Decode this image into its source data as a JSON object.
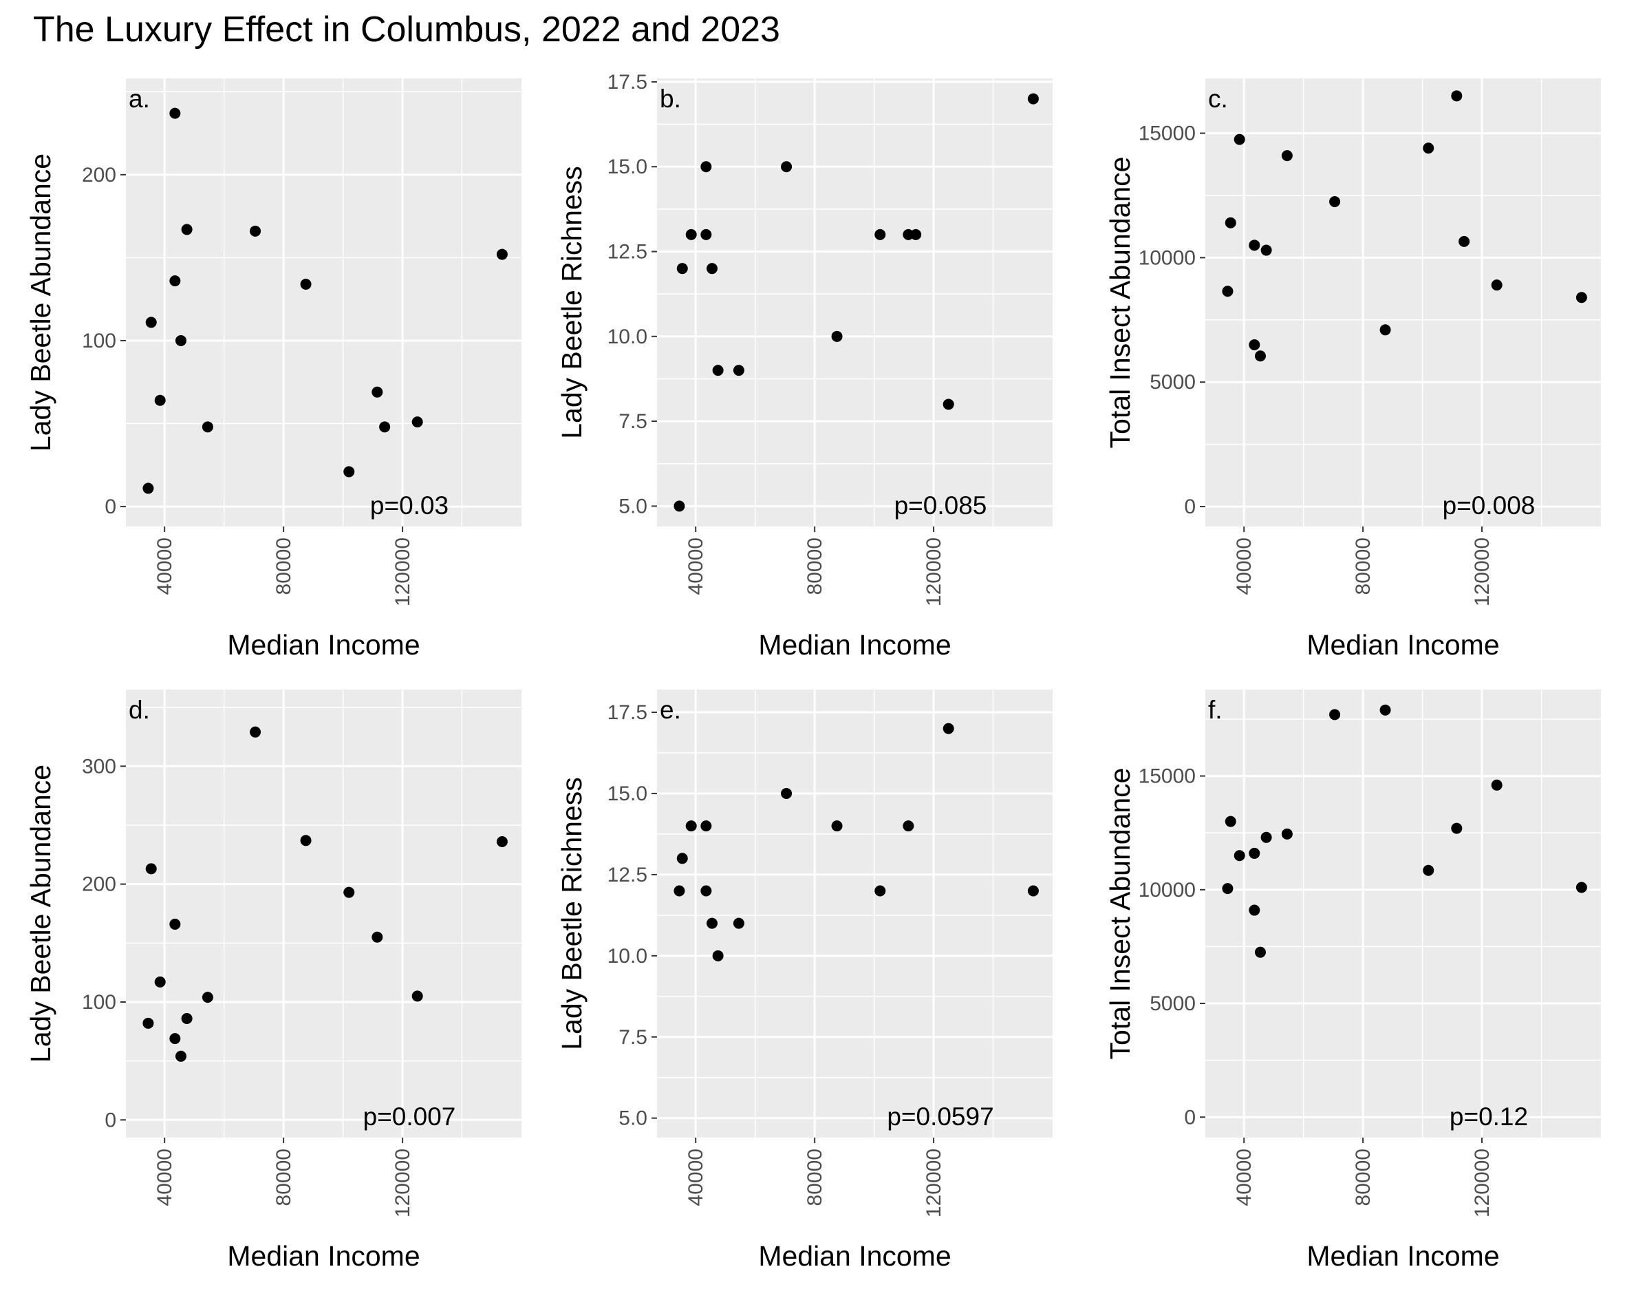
{
  "figure": {
    "title": "The Luxury Effect in Columbus, 2022 and 2023"
  },
  "chart_data": [
    {
      "type": "scatter",
      "panel_label": "a.",
      "annotation": "p=0.03",
      "xlabel": "Median Income",
      "ylabel": "Lady Beetle Abundance",
      "xlim": [
        27000,
        160000
      ],
      "ylim": [
        -12,
        258
      ],
      "x_ticks": [
        40000,
        80000,
        120000
      ],
      "y_ticks": [
        0,
        100,
        200
      ],
      "y_tick_labels": [
        "0",
        "100",
        "200"
      ],
      "grid": true,
      "points": [
        {
          "x": 34500,
          "y": 11
        },
        {
          "x": 35500,
          "y": 111
        },
        {
          "x": 38500,
          "y": 64
        },
        {
          "x": 43500,
          "y": 237
        },
        {
          "x": 43500,
          "y": 136
        },
        {
          "x": 45500,
          "y": 100
        },
        {
          "x": 47500,
          "y": 167
        },
        {
          "x": 54500,
          "y": 48
        },
        {
          "x": 70500,
          "y": 166
        },
        {
          "x": 87500,
          "y": 134
        },
        {
          "x": 102000,
          "y": 21
        },
        {
          "x": 111500,
          "y": 69
        },
        {
          "x": 114000,
          "y": 48
        },
        {
          "x": 125000,
          "y": 51
        },
        {
          "x": 153500,
          "y": 152
        }
      ]
    },
    {
      "type": "scatter",
      "panel_label": "b.",
      "annotation": "p=0.085",
      "xlabel": "Median Income",
      "ylabel": "Lady Beetle Richness",
      "xlim": [
        27000,
        160000
      ],
      "ylim": [
        4.4,
        17.6
      ],
      "x_ticks": [
        40000,
        80000,
        120000
      ],
      "y_ticks": [
        5,
        7.5,
        10,
        12.5,
        15,
        17.5
      ],
      "y_tick_labels": [
        "5.0",
        "7.5",
        "10.0",
        "12.5",
        "15.0",
        "17.5"
      ],
      "grid": true,
      "points": [
        {
          "x": 34500,
          "y": 5
        },
        {
          "x": 35500,
          "y": 12
        },
        {
          "x": 38500,
          "y": 13
        },
        {
          "x": 43500,
          "y": 13
        },
        {
          "x": 43500,
          "y": 15
        },
        {
          "x": 45500,
          "y": 12
        },
        {
          "x": 47500,
          "y": 9
        },
        {
          "x": 54500,
          "y": 9
        },
        {
          "x": 70500,
          "y": 15
        },
        {
          "x": 87500,
          "y": 10
        },
        {
          "x": 102000,
          "y": 13
        },
        {
          "x": 111500,
          "y": 13
        },
        {
          "x": 114000,
          "y": 13
        },
        {
          "x": 125000,
          "y": 8
        },
        {
          "x": 153500,
          "y": 17
        }
      ]
    },
    {
      "type": "scatter",
      "panel_label": "c.",
      "annotation": "p=0.008",
      "xlabel": "Median Income",
      "ylabel": "Total Insect Abundance",
      "xlim": [
        27000,
        160000
      ],
      "ylim": [
        -800,
        17200
      ],
      "x_ticks": [
        40000,
        80000,
        120000
      ],
      "y_ticks": [
        0,
        5000,
        10000,
        15000
      ],
      "y_tick_labels": [
        "0",
        "5000",
        "10000",
        "15000"
      ],
      "grid": true,
      "points": [
        {
          "x": 34500,
          "y": 8650
        },
        {
          "x": 35500,
          "y": 11400
        },
        {
          "x": 38500,
          "y": 14750
        },
        {
          "x": 43500,
          "y": 10500
        },
        {
          "x": 43500,
          "y": 6500
        },
        {
          "x": 45500,
          "y": 6050
        },
        {
          "x": 47500,
          "y": 10300
        },
        {
          "x": 54500,
          "y": 14100
        },
        {
          "x": 70500,
          "y": 12250
        },
        {
          "x": 87500,
          "y": 7100
        },
        {
          "x": 102000,
          "y": 14400
        },
        {
          "x": 111500,
          "y": 16500
        },
        {
          "x": 114000,
          "y": 10650
        },
        {
          "x": 125000,
          "y": 8900
        },
        {
          "x": 153500,
          "y": 8400
        }
      ]
    },
    {
      "type": "scatter",
      "panel_label": "d.",
      "annotation": "p=0.007",
      "xlabel": "Median Income",
      "ylabel": "Lady Beetle Abundance",
      "xlim": [
        27000,
        160000
      ],
      "ylim": [
        -15,
        365
      ],
      "x_ticks": [
        40000,
        80000,
        120000
      ],
      "y_ticks": [
        0,
        100,
        200,
        300
      ],
      "y_tick_labels": [
        "0",
        "100",
        "200",
        "300"
      ],
      "grid": true,
      "points": [
        {
          "x": 34500,
          "y": 82
        },
        {
          "x": 35500,
          "y": 213
        },
        {
          "x": 38500,
          "y": 117
        },
        {
          "x": 43500,
          "y": 69
        },
        {
          "x": 43500,
          "y": 166
        },
        {
          "x": 45500,
          "y": 54
        },
        {
          "x": 47500,
          "y": 86
        },
        {
          "x": 54500,
          "y": 104
        },
        {
          "x": 70500,
          "y": 329
        },
        {
          "x": 87500,
          "y": 237
        },
        {
          "x": 102000,
          "y": 193
        },
        {
          "x": 111500,
          "y": 155
        },
        {
          "x": 125000,
          "y": 105
        },
        {
          "x": 153500,
          "y": 236
        }
      ]
    },
    {
      "type": "scatter",
      "panel_label": "e.",
      "annotation": "p=0.0597",
      "xlabel": "Median Income",
      "ylabel": "Lady Beetle Richness",
      "xlim": [
        27000,
        160000
      ],
      "ylim": [
        4.4,
        18.2
      ],
      "x_ticks": [
        40000,
        80000,
        120000
      ],
      "y_ticks": [
        5,
        7.5,
        10,
        12.5,
        15,
        17.5
      ],
      "y_tick_labels": [
        "5.0",
        "7.5",
        "10.0",
        "12.5",
        "15.0",
        "17.5"
      ],
      "grid": true,
      "points": [
        {
          "x": 34500,
          "y": 12
        },
        {
          "x": 35500,
          "y": 13
        },
        {
          "x": 38500,
          "y": 14
        },
        {
          "x": 43500,
          "y": 14
        },
        {
          "x": 43500,
          "y": 12
        },
        {
          "x": 45500,
          "y": 11
        },
        {
          "x": 47500,
          "y": 10
        },
        {
          "x": 54500,
          "y": 11
        },
        {
          "x": 70500,
          "y": 15
        },
        {
          "x": 87500,
          "y": 14
        },
        {
          "x": 102000,
          "y": 12
        },
        {
          "x": 111500,
          "y": 14
        },
        {
          "x": 125000,
          "y": 17
        },
        {
          "x": 153500,
          "y": 12
        }
      ]
    },
    {
      "type": "scatter",
      "panel_label": "f.",
      "annotation": "p=0.12",
      "xlabel": "Median Income",
      "ylabel": "Total Insect Abundance",
      "xlim": [
        27000,
        160000
      ],
      "ylim": [
        -900,
        18800
      ],
      "x_ticks": [
        40000,
        80000,
        120000
      ],
      "y_ticks": [
        0,
        5000,
        10000,
        15000
      ],
      "y_tick_labels": [
        "0",
        "5000",
        "10000",
        "15000"
      ],
      "grid": true,
      "points": [
        {
          "x": 34500,
          "y": 10050
        },
        {
          "x": 35500,
          "y": 13000
        },
        {
          "x": 38500,
          "y": 11500
        },
        {
          "x": 43500,
          "y": 11600
        },
        {
          "x": 43500,
          "y": 9100
        },
        {
          "x": 45500,
          "y": 7250
        },
        {
          "x": 47500,
          "y": 12300
        },
        {
          "x": 54500,
          "y": 12450
        },
        {
          "x": 70500,
          "y": 17700
        },
        {
          "x": 87500,
          "y": 17900
        },
        {
          "x": 102000,
          "y": 10850
        },
        {
          "x": 111500,
          "y": 12700
        },
        {
          "x": 125000,
          "y": 14600
        },
        {
          "x": 153500,
          "y": 10100
        }
      ]
    }
  ]
}
